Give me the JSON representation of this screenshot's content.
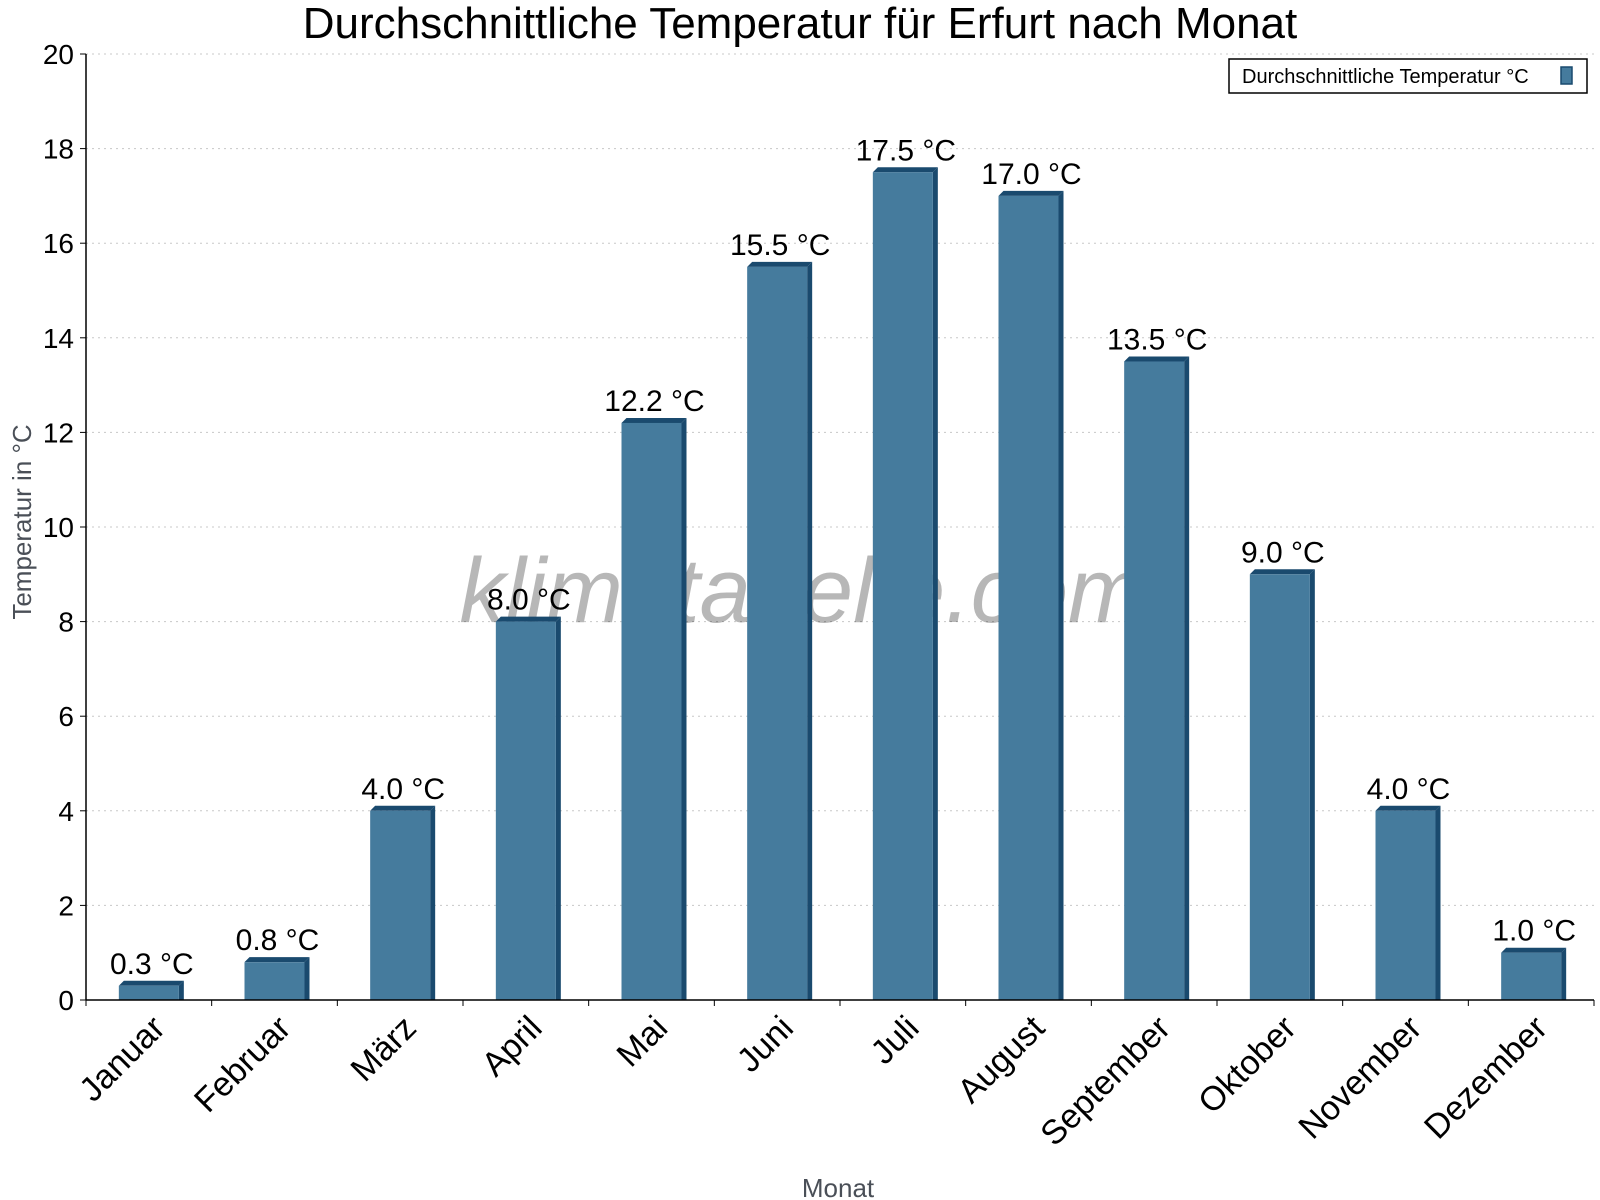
{
  "chart_data": {
    "type": "bar",
    "title": "Durchschnittliche Temperatur für Erfurt nach Monat",
    "xlabel": "Monat",
    "ylabel": "Temperatur in °C",
    "ylim": [
      0,
      20
    ],
    "yticks": [
      0,
      2,
      4,
      6,
      8,
      10,
      12,
      14,
      16,
      18,
      20
    ],
    "grid": true,
    "legend_position": "top-right",
    "categories": [
      "Januar",
      "Februar",
      "März",
      "April",
      "Mai",
      "Juni",
      "Juli",
      "August",
      "September",
      "Oktober",
      "November",
      "Dezember"
    ],
    "series": [
      {
        "name": "Durchschnittliche Temperatur °C",
        "color": "#457b9d",
        "values": [
          0.3,
          0.8,
          4.0,
          8.0,
          12.2,
          15.5,
          17.5,
          17.0,
          13.5,
          9.0,
          4.0,
          1.0
        ],
        "labels": [
          "0.3 °C",
          "0.8 °C",
          "4.0 °C",
          "8.0 °C",
          "12.2 °C",
          "15.5 °C",
          "17.5 °C",
          "17.0 °C",
          "13.5 °C",
          "9.0 °C",
          "4.0 °C",
          "1.0 °C"
        ]
      }
    ],
    "watermark": "klimatabelle.com"
  }
}
